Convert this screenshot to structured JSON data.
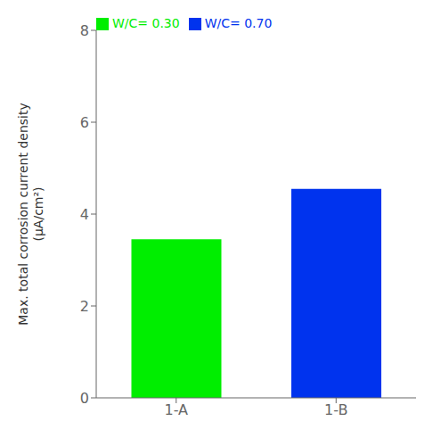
{
  "chart_data": {
    "type": "bar",
    "categories": [
      "1-A",
      "1-B"
    ],
    "series": [
      {
        "name": "W/C= 0.30",
        "color": "#00ee00",
        "values": [
          3.45,
          null
        ]
      },
      {
        "name": "W/C= 0.70",
        "color": "#0033ee",
        "values": [
          null,
          4.55
        ]
      }
    ],
    "stacked": true,
    "ylabel": "Max. total corrosion current density\n(μA/cm²)",
    "ylim": [
      0,
      8
    ],
    "yticks": [
      0,
      2,
      4,
      6,
      8
    ],
    "grid": false,
    "legend": "upper left"
  }
}
